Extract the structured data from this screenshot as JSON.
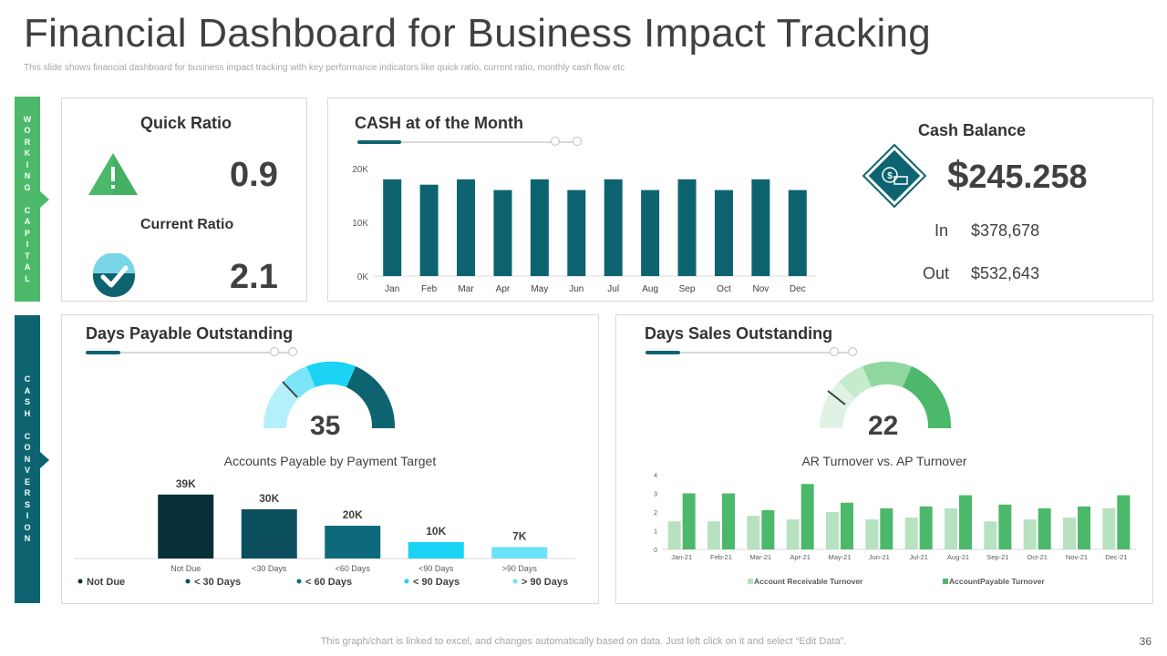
{
  "title": "Financial Dashboard for Business Impact Tracking",
  "subtitle": "This slide shows financial dashboard for business impact tracking with key performance indicators like quick ratio, current ratio, monthly cash flow etc",
  "side_labels": {
    "working_capital": "WORKING CAPITAL",
    "cash_conversion": "CASH CONVERSION"
  },
  "ratios": {
    "quick_label": "Quick Ratio",
    "quick_value": "0.9",
    "current_label": "Current Ratio",
    "current_value": "2.1"
  },
  "cash_month": {
    "title": "CASH  at of the Month"
  },
  "cash_balance": {
    "title": "Cash Balance",
    "currency": "$",
    "amount": "245.258",
    "in_label": "In",
    "in_value": "$378,678",
    "out_label": "Out",
    "out_value": "$532,643"
  },
  "dpo": {
    "title": "Days Payable Outstanding",
    "gauge_value": "35"
  },
  "dso": {
    "title": "Days Sales Outstanding",
    "gauge_value": "22"
  },
  "colors": {
    "teal": "#0d6470",
    "green": "#4cb86a",
    "light_green": "#b7e2c0",
    "cyan": "#1ad3f5"
  },
  "footer": "This graph/chart is linked to excel,  and changes automatically based on data. Just left click on it and select “Edit Data”.",
  "page_number": "36",
  "chart_data": [
    {
      "id": "cash",
      "type": "bar",
      "title": "CASH  at of the Month",
      "categories": [
        "Jan",
        "Feb",
        "Mar",
        "Apr",
        "May",
        "Jun",
        "Jul",
        "Aug",
        "Sep",
        "Oct",
        "Nov",
        "Dec"
      ],
      "values": [
        18000,
        17000,
        18000,
        16000,
        18000,
        16000,
        18000,
        16000,
        18000,
        16000,
        18000,
        16000
      ],
      "ylim": [
        0,
        20000
      ],
      "yticks": [
        "0K",
        "10K",
        "20K"
      ],
      "ytick_values": [
        0,
        10000,
        20000
      ]
    },
    {
      "id": "ap",
      "type": "bar",
      "title": "Accounts Payable by Payment Target",
      "categories": [
        "Not Due",
        "<30 Days",
        "<60 Days",
        "<90 Days",
        ">90 Days"
      ],
      "values": [
        39,
        30,
        20,
        10,
        7
      ],
      "data_labels": [
        "39K",
        "30K",
        "20K",
        "10K",
        "7K"
      ],
      "legend": [
        "Not Due",
        "< 30 Days",
        "< 60 Days",
        "< 90 Days",
        "> 90 Days"
      ],
      "colors": [
        "#062f3a",
        "#0b4f5e",
        "#0d6a7d",
        "#1ad3f5",
        "#6be3f7"
      ],
      "ylim": [
        0,
        40
      ]
    },
    {
      "id": "ar_ap",
      "type": "bar",
      "title": "AR Turnover vs. AP Turnover",
      "categories": [
        "Jan-21",
        "Feb-21",
        "Mar-21",
        "Apr-21",
        "May-21",
        "Jun-21",
        "Jul-21",
        "Aug-21",
        "Sep-21",
        "Oct-21",
        "Nov-21",
        "Dec-21"
      ],
      "series": [
        {
          "name": "Account Receivable Turnover",
          "values": [
            1.5,
            1.5,
            1.8,
            1.6,
            2.0,
            1.6,
            1.7,
            2.2,
            1.5,
            1.6,
            1.7,
            2.2
          ],
          "color": "#b7e2c0"
        },
        {
          "name": "AccountPayable Turnover",
          "values": [
            3.0,
            3.0,
            2.1,
            3.5,
            2.5,
            2.2,
            2.3,
            2.9,
            2.4,
            2.2,
            2.3,
            2.9
          ],
          "color": "#4cb86a"
        }
      ],
      "ylim": [
        0,
        4
      ],
      "yticks": [
        "0",
        "1",
        "2",
        "3",
        "4"
      ],
      "ytick_values": [
        0,
        1,
        2,
        3,
        4
      ]
    }
  ]
}
